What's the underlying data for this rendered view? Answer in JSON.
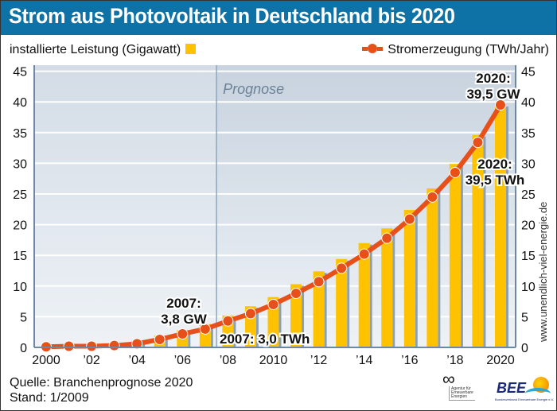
{
  "header": {
    "title": "Strom aus Photovoltaik in Deutschland bis 2020"
  },
  "legend": {
    "bars_label": "installierte Leistung (Gigawatt)",
    "line_label": "Stromerzeugung (TWh/Jahr)"
  },
  "colors": {
    "bar": "#ffc200",
    "line": "#e8501a",
    "header": "#0e72a6",
    "plot_bg": "#dde4ec",
    "prognose_bg": "#cfd9e3"
  },
  "footer": {
    "source": "Quelle: Branchenprognose 2020",
    "date": "Stand: 1/2009"
  },
  "side_text": "www.unendlich-viel-energie.de",
  "logos": {
    "aee": {
      "symbol": "∞",
      "text": [
        "Agentur für",
        "Erneuerbare",
        "Energien"
      ]
    },
    "bee": {
      "text": "BEE",
      "sub": "Bundesverband Erneuerbare Energie e.V."
    }
  },
  "chart_data": {
    "type": "bar",
    "title": "Strom aus Photovoltaik in Deutschland bis 2020",
    "xlabel": "",
    "ylabel": "",
    "ylim": [
      0,
      45
    ],
    "yticks": [
      0,
      5,
      10,
      15,
      20,
      25,
      30,
      35,
      40,
      45
    ],
    "grid": true,
    "legend_position": "top",
    "categories": [
      2000,
      2001,
      2002,
      2003,
      2004,
      2005,
      2006,
      2007,
      2008,
      2009,
      2010,
      2011,
      2012,
      2013,
      2014,
      2015,
      2016,
      2017,
      2018,
      2019,
      2020
    ],
    "xtick_labels": [
      {
        "year": 2000,
        "label": "2000"
      },
      {
        "year": 2002,
        "label": "’02"
      },
      {
        "year": 2004,
        "label": "’04"
      },
      {
        "year": 2006,
        "label": "’06"
      },
      {
        "year": 2008,
        "label": "’08"
      },
      {
        "year": 2010,
        "label": "2010"
      },
      {
        "year": 2012,
        "label": "’12"
      },
      {
        "year": 2014,
        "label": "’14"
      },
      {
        "year": 2016,
        "label": "’16"
      },
      {
        "year": 2018,
        "label": "’18"
      },
      {
        "year": 2020,
        "label": "2020"
      }
    ],
    "series": [
      {
        "name": "installierte Leistung (Gigawatt)",
        "type": "bar",
        "values": [
          0.1,
          0.2,
          0.3,
          0.4,
          1.1,
          1.9,
          2.8,
          3.8,
          5.2,
          6.7,
          8.2,
          10.3,
          12.4,
          14.4,
          17.0,
          19.4,
          22.4,
          25.9,
          29.9,
          34.6,
          39.5
        ]
      },
      {
        "name": "Stromerzeugung (TWh/Jahr)",
        "type": "line",
        "values": [
          0.1,
          0.2,
          0.2,
          0.3,
          0.6,
          1.3,
          2.2,
          3.0,
          4.3,
          5.5,
          7.0,
          8.8,
          10.7,
          12.9,
          15.2,
          17.8,
          20.9,
          24.5,
          28.5,
          33.4,
          39.5
        ]
      }
    ],
    "prognose": {
      "label": "Prognose",
      "start_year": 2007.5
    },
    "annotations": [
      {
        "id": "gw2007",
        "lines": [
          "2007:",
          "3,8 GW"
        ]
      },
      {
        "id": "twh2007",
        "lines": [
          "2007: 3,0 TWh"
        ]
      },
      {
        "id": "gw2020",
        "lines": [
          "2020:",
          "39,5 GW"
        ]
      },
      {
        "id": "twh2020",
        "lines": [
          "2020:",
          "39,5 TWh"
        ]
      }
    ]
  }
}
